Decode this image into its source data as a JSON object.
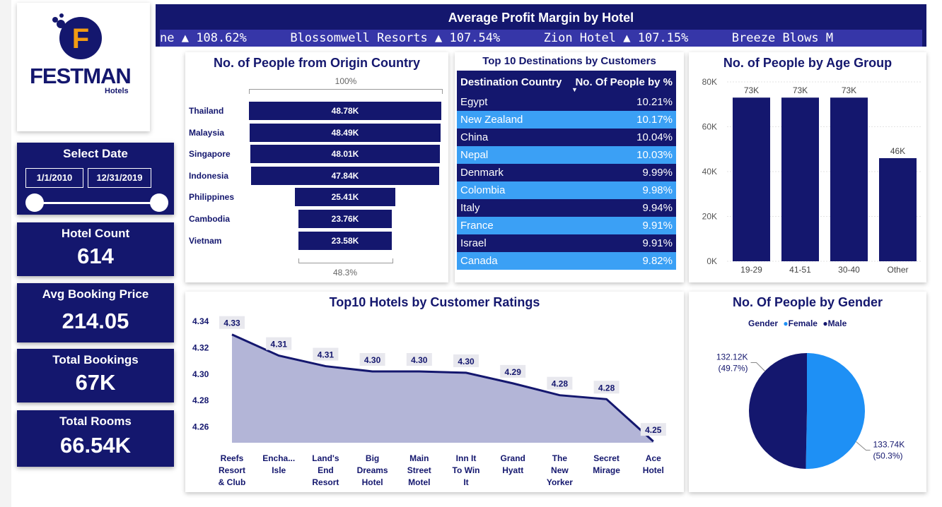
{
  "brand": {
    "name": "FESTMAN",
    "sub": "Hotels",
    "letter": "F"
  },
  "ticker": {
    "title": "Average Profit Margin by Hotel",
    "items": [
      {
        "name": "ne",
        "value": "108.62%"
      },
      {
        "name": "Blossomwell Resorts",
        "value": "107.54%"
      },
      {
        "name": "Zion Hotel",
        "value": "107.15%"
      },
      {
        "name": "Breeze Blows M",
        "value": ""
      }
    ]
  },
  "date_filter": {
    "title": "Select Date",
    "start": "1/1/2010",
    "end": "12/31/2019"
  },
  "kpis": [
    {
      "label": "Hotel Count",
      "value": "614"
    },
    {
      "label": "Avg Booking Price",
      "value": "214.05"
    },
    {
      "label": "Total Bookings",
      "value": "67K"
    },
    {
      "label": "Total Rooms",
      "value": "66.54K"
    }
  ],
  "origin": {
    "title": "No. of People from Origin Country",
    "top_pct": "100%",
    "bottom_pct": "48.3%",
    "rows": [
      {
        "country": "Thailand",
        "label": "48.78K",
        "value": 48.78
      },
      {
        "country": "Malaysia",
        "label": "48.49K",
        "value": 48.49
      },
      {
        "country": "Singapore",
        "label": "48.01K",
        "value": 48.01
      },
      {
        "country": "Indonesia",
        "label": "47.84K",
        "value": 47.84
      },
      {
        "country": "Philippines",
        "label": "25.41K",
        "value": 25.41
      },
      {
        "country": "Cambodia",
        "label": "23.76K",
        "value": 23.76
      },
      {
        "country": "Vietnam",
        "label": "23.58K",
        "value": 23.58
      }
    ]
  },
  "destinations": {
    "title": "Top 10 Destinations by Customers",
    "col1": "Destination Country",
    "col2": "No. Of People by %",
    "rows": [
      {
        "country": "Egypt",
        "pct": "10.21%"
      },
      {
        "country": "New Zealand",
        "pct": "10.17%"
      },
      {
        "country": "China",
        "pct": "10.04%"
      },
      {
        "country": "Nepal",
        "pct": "10.03%"
      },
      {
        "country": "Denmark",
        "pct": "9.99%"
      },
      {
        "country": "Colombia",
        "pct": "9.98%"
      },
      {
        "country": "Italy",
        "pct": "9.94%"
      },
      {
        "country": "France",
        "pct": "9.91%"
      },
      {
        "country": "Israel",
        "pct": "9.91%"
      },
      {
        "country": "Canada",
        "pct": "9.82%"
      }
    ]
  },
  "chart_data": [
    {
      "type": "bar",
      "title": "No. of People by Age Group",
      "categories": [
        "19-29",
        "41-51",
        "30-40",
        "Other"
      ],
      "values": [
        73,
        73,
        73,
        46
      ],
      "labels": [
        "73K",
        "73K",
        "73K",
        "46K"
      ],
      "yticks": [
        "0K",
        "20K",
        "40K",
        "60K",
        "80K"
      ],
      "ylim": [
        0,
        80
      ],
      "color": "#14176e"
    },
    {
      "type": "area",
      "title": "Top10 Hotels by Customer Ratings",
      "categories": [
        "Reefs Resort & Club",
        "Encha... Isle",
        "Land's End Resort",
        "Big Dreams Hotel",
        "Main Street Motel",
        "Inn It To Win It",
        "Grand Hyatt",
        "The New Yorker",
        "Secret Mirage",
        "Ace Hotel"
      ],
      "values": [
        4.33,
        4.314,
        4.306,
        4.302,
        4.302,
        4.301,
        4.293,
        4.284,
        4.281,
        4.249
      ],
      "labels": [
        "4.33",
        "4.31",
        "4.31",
        "4.30",
        "4.30",
        "4.30",
        "4.29",
        "4.28",
        "4.28",
        "4.25"
      ],
      "yticks": [
        "4.26",
        "4.28",
        "4.30",
        "4.32",
        "4.34"
      ],
      "ylim": [
        4.248,
        4.34
      ],
      "color": "#14176e"
    },
    {
      "type": "pie",
      "title": "No. Of People by Gender",
      "legend_title": "Gender",
      "slices": [
        {
          "name": "Female",
          "value": 133.74,
          "label": "133.74K",
          "pct": "(50.3%)",
          "color": "#1e90f5"
        },
        {
          "name": "Male",
          "value": 132.12,
          "label": "132.12K",
          "pct": "(49.7%)",
          "color": "#14176e"
        }
      ]
    }
  ]
}
